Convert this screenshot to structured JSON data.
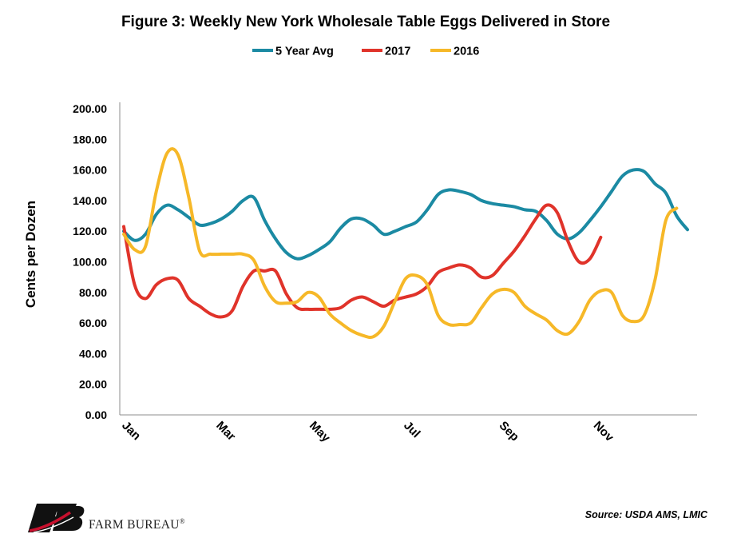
{
  "chart_data": {
    "type": "line",
    "title": "Figure 3: Weekly New York Wholesale Table Eggs Delivered in Store",
    "ylabel": "Cents per Dozen",
    "xlabel": "",
    "ylim": [
      0,
      200
    ],
    "y_ticks": [
      "0.00",
      "20.00",
      "40.00",
      "60.00",
      "80.00",
      "100.00",
      "120.00",
      "140.00",
      "160.00",
      "180.00",
      "200.00"
    ],
    "x_ticks": [
      "Jan",
      "Mar",
      "May",
      "Jul",
      "Sep",
      "Nov"
    ],
    "x_tick_weeks": [
      0,
      8.7,
      17.3,
      26,
      34.8,
      43.5
    ],
    "x_weeks_range": [
      0,
      52
    ],
    "grid": false,
    "legend_position": "top-center",
    "series": [
      {
        "name": "5 Year Avg",
        "color": "#1b8aa3",
        "values": [
          120,
          114,
          118,
          131,
          137,
          134,
          129,
          124,
          125,
          128,
          133,
          140,
          142,
          127,
          115,
          106,
          102,
          104,
          108,
          113,
          122,
          128,
          128,
          124,
          118,
          120,
          123,
          126,
          134,
          144,
          147,
          146,
          144,
          140,
          138,
          137,
          136,
          134,
          133,
          127,
          118,
          115,
          119,
          127,
          136,
          146,
          156,
          160,
          159,
          151,
          145,
          130,
          121
        ]
      },
      {
        "name": "2017",
        "color": "#e0332a",
        "values": [
          123,
          85,
          76,
          85,
          89,
          88,
          76,
          71,
          66,
          64,
          68,
          84,
          94,
          94,
          94,
          79,
          70,
          69,
          69,
          69,
          70,
          75,
          77,
          74,
          71,
          75,
          77,
          79,
          84,
          93,
          96,
          98,
          96,
          90,
          91,
          99,
          107,
          117,
          128,
          137,
          132,
          113,
          100,
          102,
          116
        ]
      },
      {
        "name": "2016",
        "color": "#f6b828",
        "values": [
          118,
          108,
          110,
          146,
          171,
          170,
          142,
          107,
          105,
          105,
          105,
          105,
          101,
          84,
          74,
          73,
          74,
          80,
          77,
          66,
          60,
          55,
          52,
          51,
          58,
          74,
          89,
          91,
          85,
          65,
          59,
          59,
          60,
          70,
          79,
          82,
          80,
          71,
          66,
          62,
          55,
          53,
          61,
          75,
          81,
          80,
          65,
          61,
          65,
          88,
          127,
          135
        ]
      }
    ]
  },
  "footer": {
    "source": "Source: USDA AMS, LMIC",
    "brand_name": "FARM BUREAU",
    "brand_mark": "®"
  }
}
